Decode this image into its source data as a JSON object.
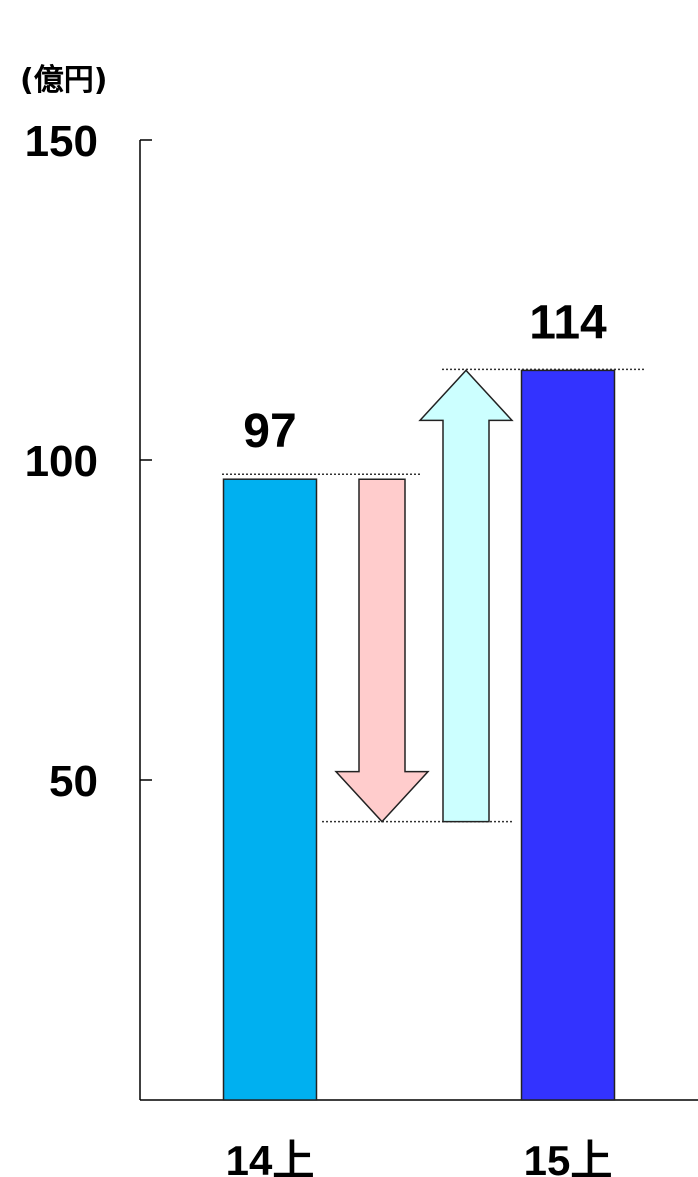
{
  "chart_data": {
    "type": "bar",
    "unit": "(億円)",
    "categories": [
      "14上",
      "15上"
    ],
    "values": [
      97,
      114
    ],
    "data_labels": [
      "97",
      "114"
    ],
    "bar_colors": [
      "#00b0f0",
      "#3333ff"
    ],
    "ylim": [
      0,
      150
    ],
    "yticks": [
      50,
      100,
      150
    ],
    "ytick_labels": [
      "50",
      "100",
      "150"
    ],
    "grid": false,
    "legend": "none",
    "changes": [
      {
        "direction": "down",
        "from": 97,
        "to": 43.5,
        "color": "#ffcccc"
      },
      {
        "direction": "up",
        "from": 43.5,
        "to": 114,
        "color": "#ccffff"
      }
    ]
  }
}
